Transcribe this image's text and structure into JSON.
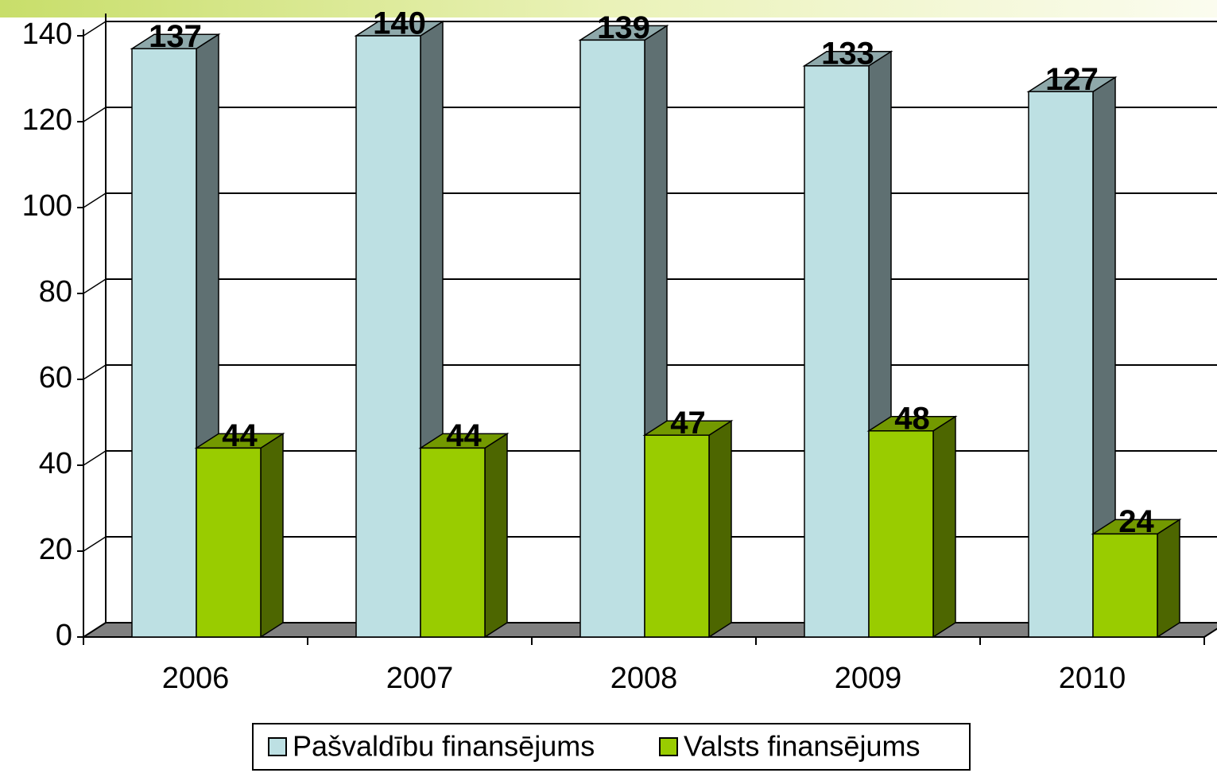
{
  "chart_data": {
    "type": "bar3d",
    "categories": [
      "2006",
      "2007",
      "2008",
      "2009",
      "2010"
    ],
    "series": [
      {
        "name": "Pašvaldību finansējums",
        "color": "#bde0e3",
        "values": [
          137,
          140,
          139,
          133,
          127
        ]
      },
      {
        "name": "Valsts finansējums",
        "color": "#99cc00",
        "values": [
          44,
          44,
          47,
          48,
          24
        ]
      }
    ],
    "ylim": [
      0,
      140
    ],
    "yticks": [
      0,
      20,
      40,
      60,
      80,
      100,
      120,
      140
    ],
    "grid": true,
    "legend": "bottom"
  }
}
